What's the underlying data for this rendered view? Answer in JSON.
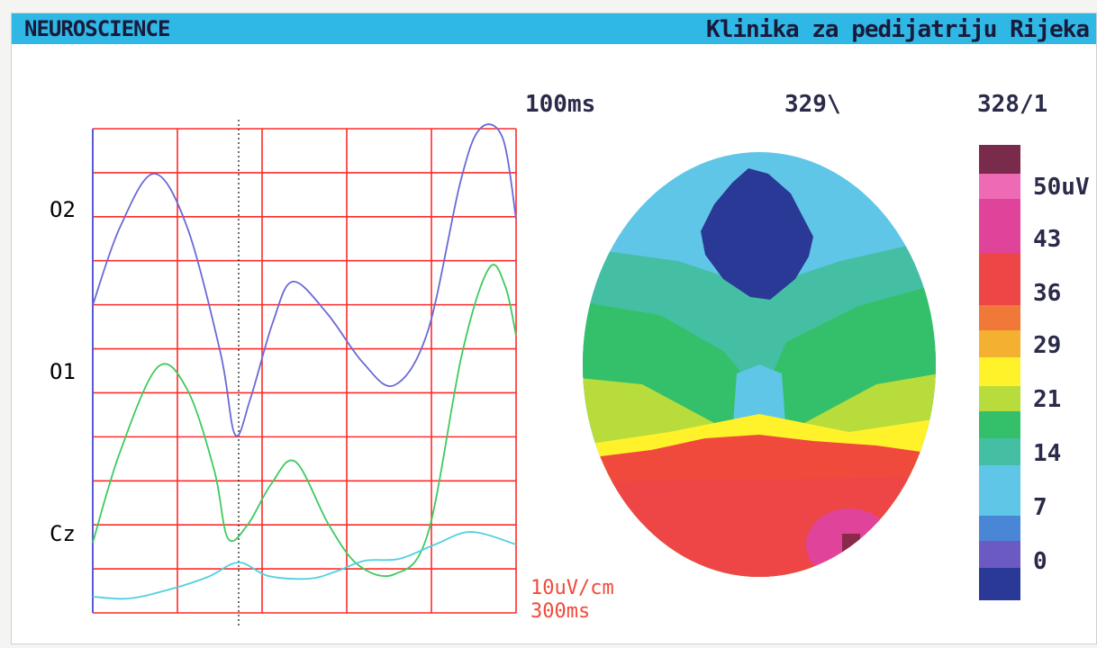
{
  "window": {
    "left_title": "NEUROSCIENCE",
    "right_title": "Klinika za pedijatriju Rijeka"
  },
  "header": {
    "time": "100ms",
    "value_a": "329\\",
    "value_b": "328/1"
  },
  "traces": {
    "channels": [
      {
        "label": "O2",
        "color": "#6a6ad6"
      },
      {
        "label": "O1",
        "color": "#3fca5f"
      },
      {
        "label": "Cz",
        "color": "#4fd0e0"
      }
    ],
    "scale_amplitude": "10uV/cm",
    "scale_time": "300ms"
  },
  "colorbar": {
    "labels": [
      "50uV",
      "43",
      "36",
      "29",
      "21",
      "14",
      "7",
      "0"
    ]
  },
  "colors": {
    "title_bar": "#2fb7e6",
    "grid": "#ff2a2a",
    "scale_text": "#f04a3a"
  }
}
